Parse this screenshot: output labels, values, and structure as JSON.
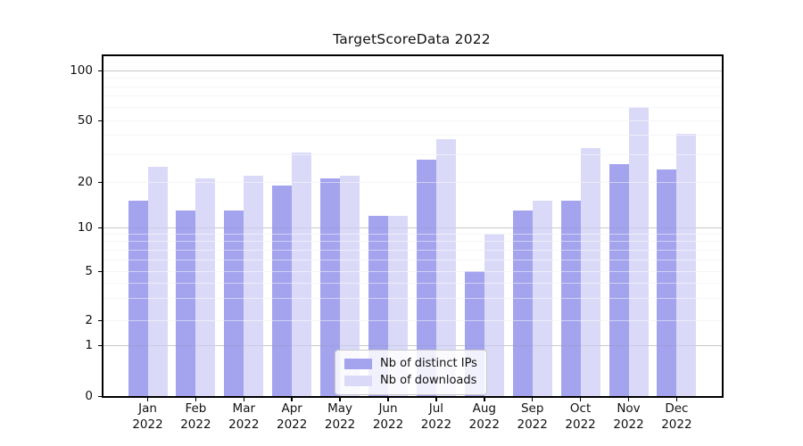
{
  "chart_data": {
    "type": "bar",
    "title": "TargetScoreData 2022",
    "categories": [
      "Jan 2022",
      "Feb 2022",
      "Mar 2022",
      "Apr 2022",
      "May 2022",
      "Jun 2022",
      "Jul 2022",
      "Aug 2022",
      "Sep 2022",
      "Oct 2022",
      "Nov 2022",
      "Dec 2022"
    ],
    "x_tick_months": [
      "Jan",
      "Feb",
      "Mar",
      "Apr",
      "May",
      "Jun",
      "Jul",
      "Aug",
      "Sep",
      "Oct",
      "Nov",
      "Dec"
    ],
    "x_tick_year": "2022",
    "series": [
      {
        "name": "Nb of distinct IPs",
        "color": "#a3a3ee",
        "values": [
          15,
          13,
          13,
          19,
          21,
          12,
          28,
          5,
          13,
          15,
          26,
          24
        ]
      },
      {
        "name": "Nb of downloads",
        "color": "#dadaf8",
        "values": [
          25,
          21,
          22,
          31,
          22,
          12,
          38,
          9,
          15,
          33,
          60,
          41
        ]
      }
    ],
    "y_axis": {
      "scale": "symlog",
      "tick_values": [
        0,
        1,
        2,
        5,
        10,
        20,
        50,
        100
      ],
      "tick_labels": [
        "0",
        "1",
        "2",
        "5",
        "10",
        "20",
        "50",
        "100"
      ],
      "minor_gridlines": [
        2,
        3,
        4,
        5,
        6,
        7,
        8,
        9,
        20,
        30,
        40,
        50,
        60,
        70,
        80,
        90
      ],
      "major_gridlines": [
        1,
        10,
        100
      ],
      "ylim": [
        0,
        115
      ]
    },
    "legend": {
      "position": "lower center"
    },
    "grid": true,
    "background_color": "#ffffff",
    "axis_color": "#000000"
  }
}
